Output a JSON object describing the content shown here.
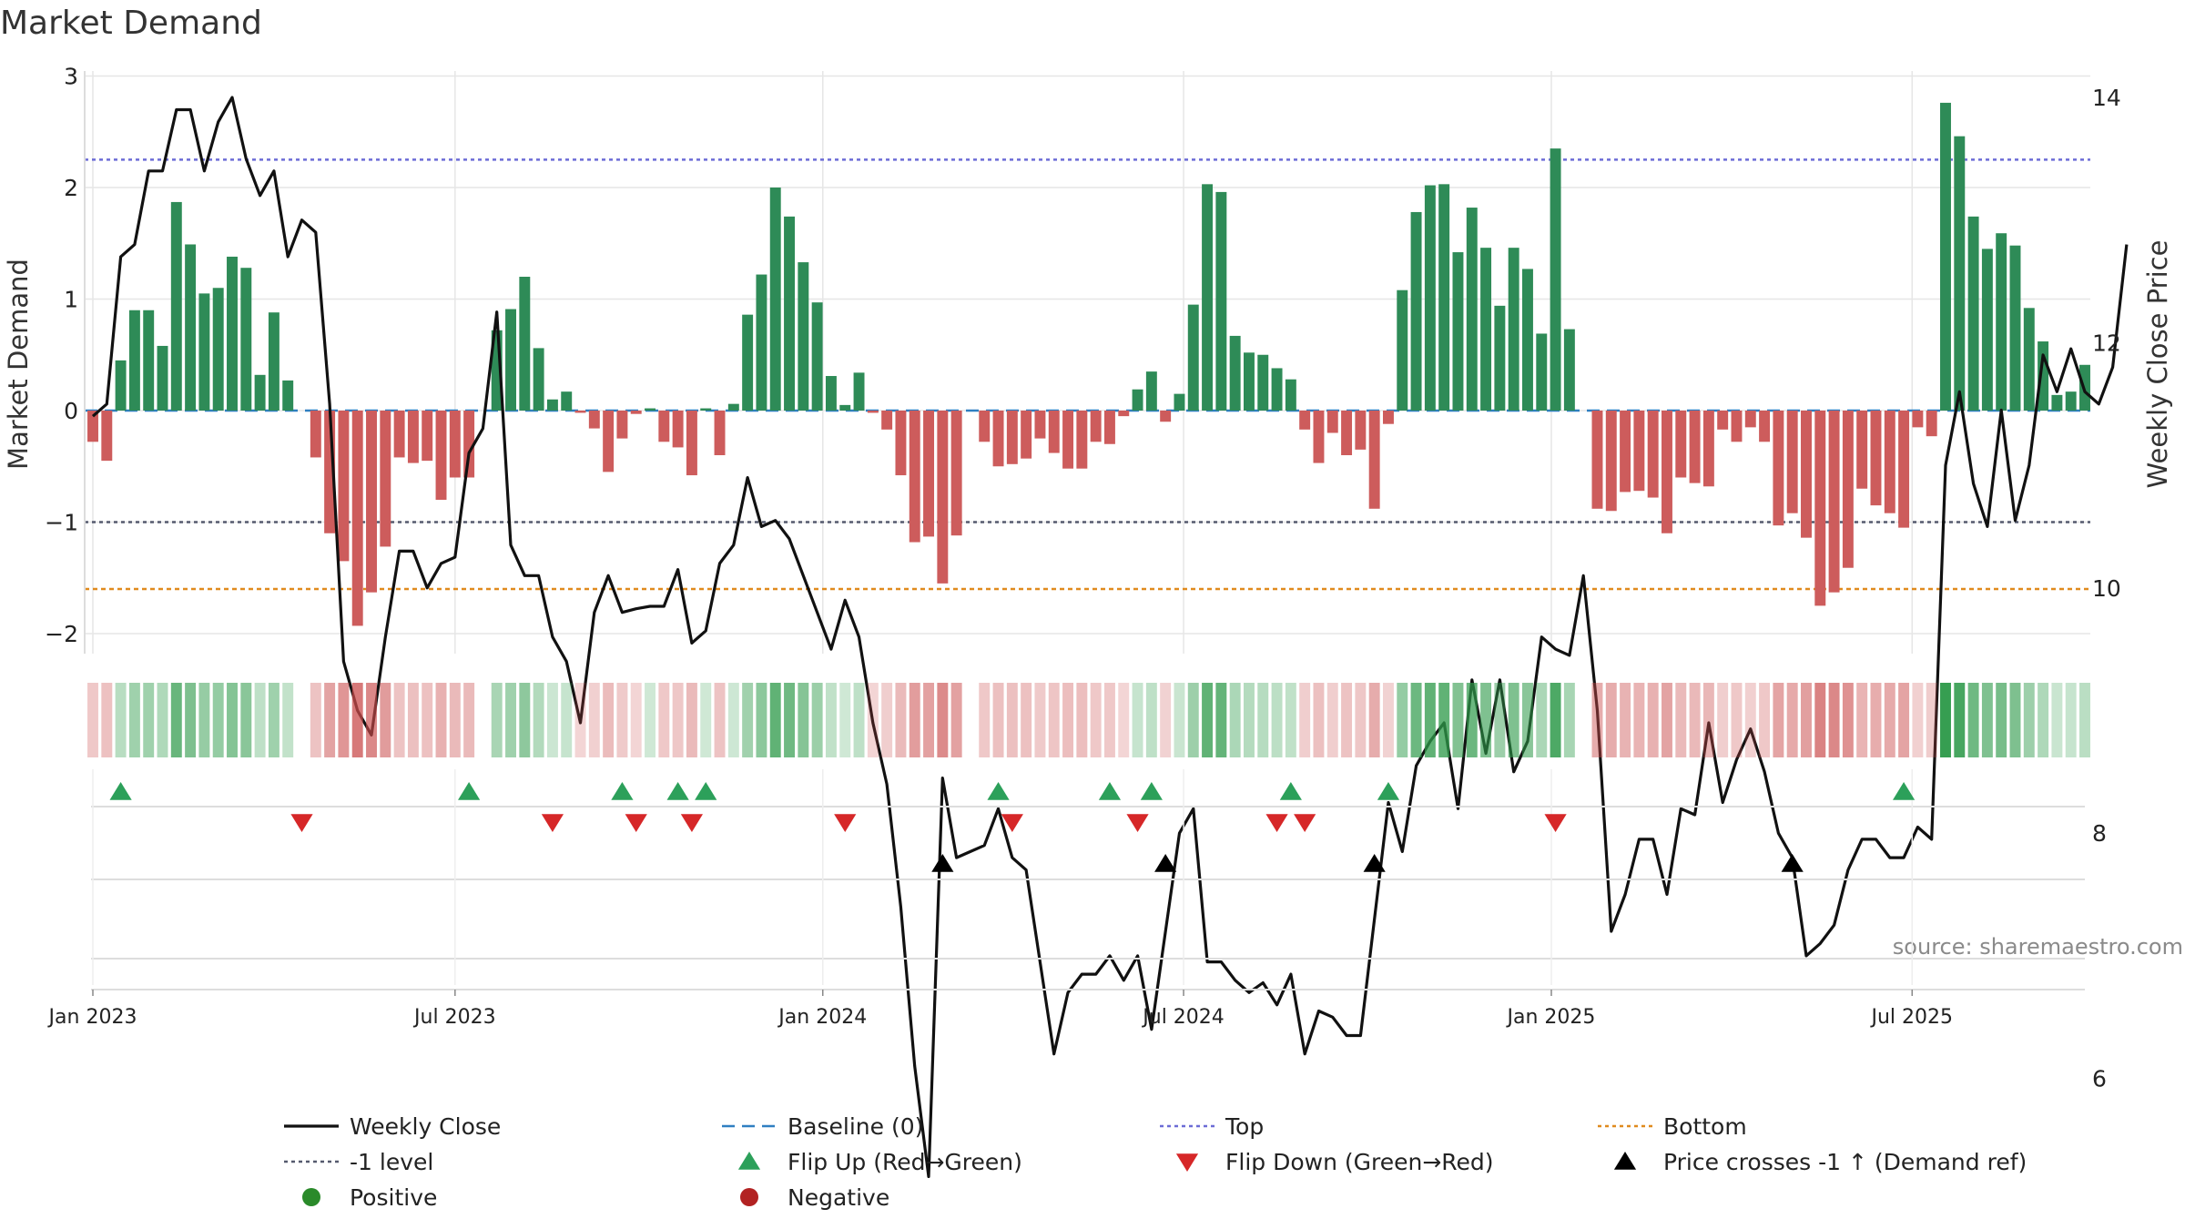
{
  "chart_data": {
    "type": "bar+line",
    "title": "Market Demand",
    "ylabel_left": "Market Demand",
    "ylabel_right": "Weekly Close Price",
    "source": "source: sharemaestro.com",
    "ylim_left": [
      -2.2,
      3
    ],
    "ylim_right": [
      4.6,
      14.3
    ],
    "yticks_left": [
      "3",
      "2",
      "1",
      "0",
      "−1",
      "−2"
    ],
    "yticks_left_values": [
      3,
      2,
      1,
      0,
      -1,
      -2
    ],
    "yticks_right": [
      "14",
      "12",
      "10",
      "8",
      "6"
    ],
    "yticks_right_values": [
      14,
      12,
      10,
      8,
      6
    ],
    "x_ticks": [
      "Jan 2023",
      "Jul 2023",
      "Jan 2024",
      "Jul 2024",
      "Jan 2025",
      "Jul 2025"
    ],
    "x_tick_weeks": [
      0,
      26,
      52.4,
      78.3,
      104.7,
      130.6
    ],
    "reference_lines": {
      "top": 2.25,
      "minus_one": -1.0,
      "bottom": -1.6
    },
    "demand": [
      -0.28,
      -0.45,
      0.45,
      0.9,
      0.9,
      0.58,
      1.87,
      1.49,
      1.05,
      1.1,
      1.38,
      1.28,
      0.32,
      0.88,
      0.27,
      0.0,
      -0.42,
      -1.1,
      -1.35,
      -1.93,
      -1.63,
      -1.22,
      -0.42,
      -0.47,
      -0.45,
      -0.8,
      -0.6,
      -0.6,
      0.0,
      0.72,
      0.91,
      1.2,
      0.56,
      0.1,
      0.17,
      -0.02,
      -0.16,
      -0.55,
      -0.25,
      -0.03,
      0.02,
      -0.28,
      -0.33,
      -0.58,
      0.02,
      -0.4,
      0.06,
      0.86,
      1.22,
      2.0,
      1.74,
      1.33,
      0.97,
      0.31,
      0.05,
      0.34,
      -0.02,
      -0.17,
      -0.58,
      -1.18,
      -1.13,
      -1.55,
      -1.12,
      0.0,
      -0.28,
      -0.5,
      -0.48,
      -0.43,
      -0.25,
      -0.38,
      -0.52,
      -0.52,
      -0.28,
      -0.3,
      -0.05,
      0.19,
      0.35,
      -0.1,
      0.15,
      0.95,
      2.03,
      1.96,
      0.67,
      0.52,
      0.5,
      0.38,
      0.28,
      -0.17,
      -0.47,
      -0.2,
      -0.4,
      -0.35,
      -0.88,
      -0.12,
      1.08,
      1.78,
      2.02,
      2.03,
      1.42,
      1.82,
      1.46,
      0.94,
      1.46,
      1.27,
      0.69,
      2.35,
      0.73,
      0.0,
      -0.88,
      -0.9,
      -0.73,
      -0.72,
      -0.78,
      -1.1,
      -0.6,
      -0.65,
      -0.68,
      -0.17,
      -0.28,
      -0.15,
      -0.28,
      -1.03,
      -0.92,
      -1.14,
      -1.75,
      -1.63,
      -1.41,
      -0.7,
      -0.85,
      -0.92,
      -1.05,
      -0.15,
      -0.23,
      2.76,
      2.46,
      1.74,
      1.45,
      1.59,
      1.48,
      0.92,
      0.62,
      0.14,
      0.17,
      0.41
    ],
    "weekly_close": [
      11.4,
      11.5,
      12.7,
      12.8,
      13.4,
      13.4,
      13.9,
      13.9,
      13.4,
      13.8,
      14.0,
      13.5,
      13.2,
      13.4,
      12.7,
      13.0,
      12.9,
      11.5,
      9.4,
      9.0,
      8.8,
      9.6,
      10.3,
      10.3,
      10.0,
      10.2,
      10.25,
      11.1,
      11.3,
      12.25,
      10.35,
      10.1,
      10.1,
      9.6,
      9.4,
      8.9,
      9.8,
      10.1,
      9.8,
      9.83,
      9.85,
      9.85,
      10.15,
      9.55,
      9.65,
      10.2,
      10.35,
      10.9,
      10.5,
      10.55,
      10.4,
      10.1,
      9.8,
      9.5,
      9.9,
      9.6,
      8.9,
      8.4,
      7.4,
      6.1,
      5.2,
      8.45,
      7.8,
      7.85,
      7.9,
      8.2,
      7.8,
      7.7,
      6.95,
      6.2,
      6.7,
      6.85,
      6.85,
      7.0,
      6.8,
      7.0,
      6.4,
      7.2,
      8.0,
      8.2,
      6.95,
      6.95,
      6.8,
      6.7,
      6.78,
      6.6,
      6.85,
      6.2,
      6.55,
      6.5,
      6.35,
      6.35,
      7.3,
      8.25,
      7.85,
      8.55,
      8.75,
      8.9,
      8.2,
      9.25,
      8.65,
      9.25,
      8.5,
      8.75,
      9.6,
      9.5,
      9.45,
      10.1,
      9.0,
      7.2,
      7.5,
      7.95,
      7.95,
      7.5,
      8.2,
      8.15,
      8.9,
      8.25,
      8.6,
      8.85,
      8.5,
      8.0,
      7.8,
      7.0,
      7.1,
      7.25,
      7.7,
      7.95,
      7.95,
      7.8,
      7.8,
      8.05,
      7.95,
      11.0,
      11.6,
      10.85,
      10.5,
      11.45,
      10.55,
      11.0,
      11.9,
      11.6,
      11.95,
      11.6,
      11.5,
      11.8,
      12.8
    ],
    "flip_up_weeks": [
      2,
      27,
      38,
      42,
      44,
      65,
      73,
      76,
      86,
      93,
      130
    ],
    "flip_down_weeks": [
      15,
      33,
      39,
      43,
      54,
      66,
      75,
      85,
      87,
      105
    ],
    "price_cross_weeks": [
      61,
      77,
      92,
      122
    ],
    "legend": [
      {
        "label": "Weekly Close",
        "symbol": "line",
        "color": "#111111"
      },
      {
        "label": "Baseline (0)",
        "symbol": "dash",
        "color": "#2f7fc1"
      },
      {
        "label": "Top",
        "symbol": "dot",
        "color": "#6c6cd6"
      },
      {
        "label": "Bottom",
        "symbol": "dot",
        "color": "#e08a1e"
      },
      {
        "label": "-1 level",
        "symbol": "dot",
        "color": "#555a6e"
      },
      {
        "label": "Flip Up (Red→Green)",
        "symbol": "tri-up",
        "color": "#2ca05a"
      },
      {
        "label": "Flip Down (Green→Red)",
        "symbol": "tri-down",
        "color": "#d62728"
      },
      {
        "label": "Price crosses -1 ↑ (Demand ref)",
        "symbol": "tri-up",
        "color": "#000000"
      },
      {
        "label": "Positive",
        "symbol": "circle",
        "color": "#2a8a2a"
      },
      {
        "label": "Negative",
        "symbol": "circle",
        "color": "#b22222"
      }
    ],
    "colors": {
      "positive_bar": "#2e8b57",
      "negative_bar": "#cd5c5c",
      "price_line": "#111111",
      "baseline": "#2f7fc1",
      "top_line": "#6c6cd6",
      "minus_one_line": "#555a6e",
      "bottom_line": "#e08a1e",
      "flip_up": "#2ca05a",
      "flip_down": "#d62728",
      "price_cross": "#000000",
      "grid": "#e6e6e6",
      "strip_positive": "#2e9a4a",
      "strip_negative": "#c94a4a"
    }
  }
}
